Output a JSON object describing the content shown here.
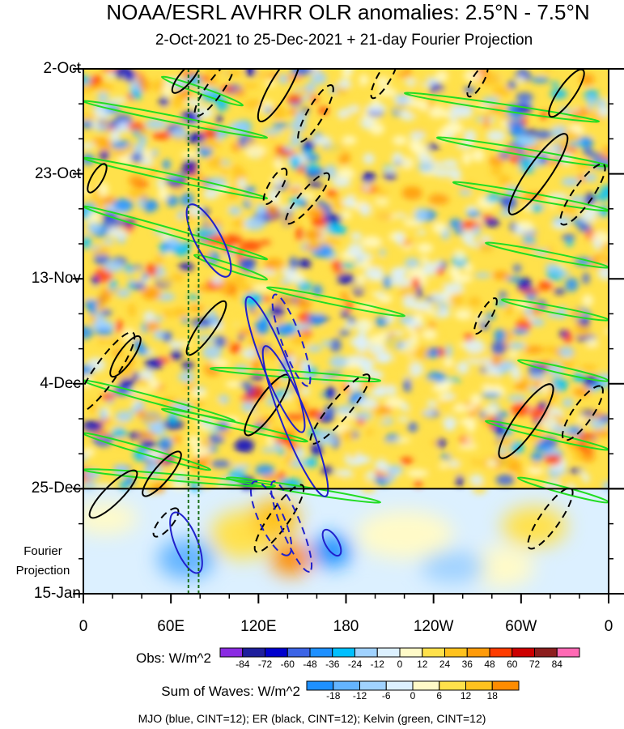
{
  "chart_data": {
    "type": "heatmap",
    "title": "NOAA/ESRL AVHRR OLR anomalies: 2.5°N - 7.5°N",
    "subtitle": "2-Oct-2021 to 25-Dec-2021 + 21-day Fourier Projection",
    "x_ticks": [
      {
        "lon": 0,
        "label": "0"
      },
      {
        "lon": 60,
        "label": "60E"
      },
      {
        "lon": 120,
        "label": "120E"
      },
      {
        "lon": 180,
        "label": "180"
      },
      {
        "lon": 240,
        "label": "120W"
      },
      {
        "lon": 300,
        "label": "60W"
      },
      {
        "lon": 360,
        "label": "0"
      }
    ],
    "xlim": [
      0,
      360
    ],
    "y_ticks": [
      {
        "day": 0,
        "label": "2-Oct"
      },
      {
        "day": 21,
        "label": "23-Oct"
      },
      {
        "day": 42,
        "label": "13-Nov"
      },
      {
        "day": 63,
        "label": "4-Dec"
      },
      {
        "day": 84,
        "label": "25-Dec"
      },
      {
        "day": 105,
        "label": "15-Jan"
      }
    ],
    "ylim": [
      0,
      105
    ],
    "observation_end_day": 84,
    "projection_label_lines": [
      "Fourier",
      "Projection"
    ],
    "reference_lines_lon": [
      72,
      79
    ],
    "obs_colorbar": {
      "title": "Obs: W/m^2",
      "levels": [
        "-84",
        "-72",
        "-60",
        "-48",
        "-36",
        "-24",
        "-12",
        "0",
        "12",
        "24",
        "36",
        "48",
        "60",
        "72",
        "84"
      ],
      "colors": [
        "#8a2be2",
        "#1e1e9c",
        "#0000cd",
        "#3c64e6",
        "#1e90ff",
        "#00bfff",
        "#a0d2ff",
        "#dcf0ff",
        "#fffac8",
        "#ffe14b",
        "#ffc21e",
        "#ff9b0a",
        "#ff3c00",
        "#cd0000",
        "#8c1e1e",
        "#ff69b4"
      ]
    },
    "waves_colorbar": {
      "title": "Sum of Waves: W/m^2",
      "levels": [
        "-18",
        "-12",
        "-6",
        "0",
        "6",
        "12",
        "18"
      ],
      "colors": [
        "#1e90ff",
        "#64b4ff",
        "#a0d2ff",
        "#dcf0ff",
        "#fffac8",
        "#ffe14b",
        "#ffc21e",
        "#ff8c00"
      ]
    },
    "wave_contours": [
      {
        "name": "MJO",
        "color": "#2020cc",
        "cint": 12
      },
      {
        "name": "ER",
        "color": "#000000",
        "cint": 12
      },
      {
        "name": "Kelvin",
        "color": "#22dd22",
        "cint": 12
      }
    ],
    "footer": "MJO (blue, CINT=12); ER (black, CINT=12); Kelvin (green, CINT=12)"
  }
}
